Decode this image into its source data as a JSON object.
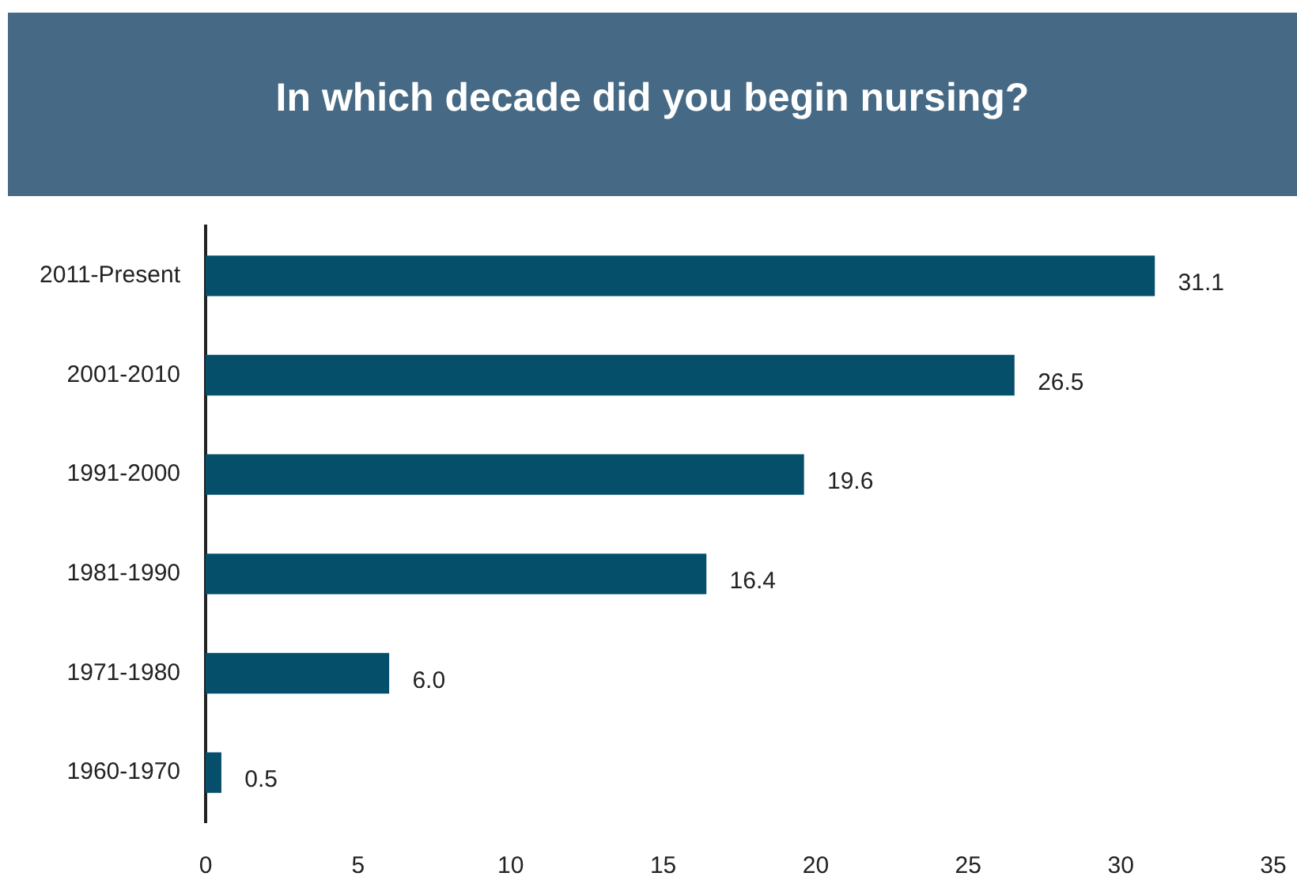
{
  "chart_data": {
    "type": "bar",
    "orientation": "horizontal",
    "title": "In which decade did you begin nursing?",
    "categories": [
      "2011-Present",
      "2001-2010",
      "1991-2000",
      "1981-1990",
      "1971-1980",
      "1960-1970"
    ],
    "values": [
      31.1,
      26.5,
      19.6,
      16.4,
      6.0,
      0.5
    ],
    "value_labels": [
      "31.1",
      "26.5",
      "19.6",
      "16.4",
      "6.0",
      "0.5"
    ],
    "color": "#054f6b",
    "xlim": [
      0,
      35
    ],
    "xticks": [
      0,
      5,
      10,
      15,
      20,
      25,
      30,
      35
    ],
    "grid": false
  }
}
